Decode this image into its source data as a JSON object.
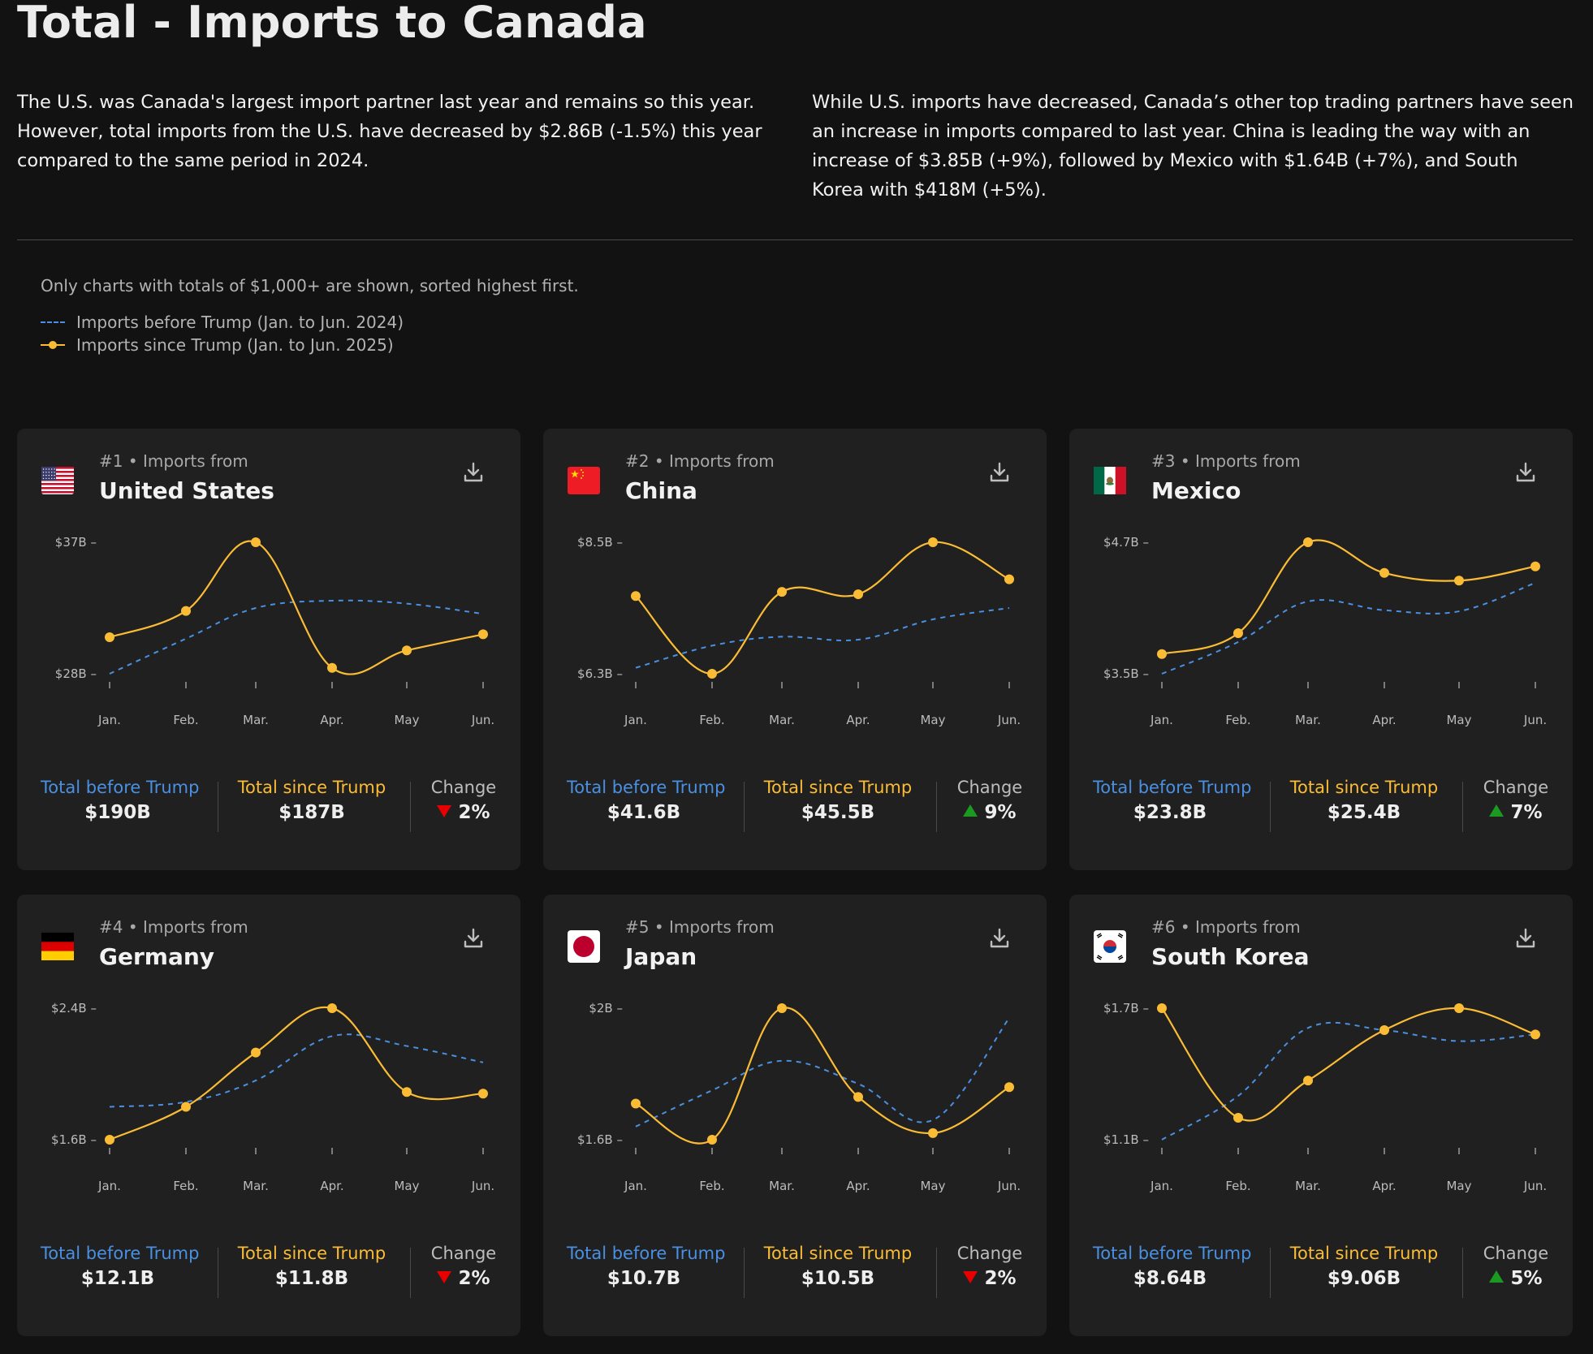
{
  "page": {
    "title": "Total - Imports to Canada",
    "intro_left": "The U.S. was Canada's largest import partner last year and remains so this year. However, total imports from the U.S. have decreased by $2.86B (-1.5%) this year compared to the same period in 2024.",
    "intro_right": "While U.S. imports have decreased, Canada’s other top trading partners have seen an increase in imports compared to last year. China is leading the way with an increase of $3.85B (+9%), followed by Mexico with $1.64B (+7%), and South Korea with $418M (+5%).",
    "note": "Only charts with totals of $1,000+ are shown, sorted highest first.",
    "legend_before": "Imports before Trump (Jan. to Jun. 2024)",
    "legend_since": "Imports since Trump (Jan. to Jun. 2025)",
    "label_before": "Total before Trump",
    "label_since": "Total since Trump",
    "label_change": "Change"
  },
  "colors": {
    "before": "#4a90e2",
    "since": "#fbbc35",
    "up": "#1a9a20",
    "down": "#e80000",
    "background": "#121212",
    "card": "#202020"
  },
  "chart_data": [
    {
      "type": "line",
      "rank": "#1 • Imports from",
      "country": "United States",
      "flag": "us-flag",
      "categories": [
        "Jan.",
        "Feb.",
        "Mar.",
        "Apr.",
        "May",
        "Jun."
      ],
      "yticks": [
        "$37B –",
        "$28B –"
      ],
      "ylim": [
        28,
        37
      ],
      "series": [
        {
          "name": "Imports before Trump (Jan. to Jun. 2024)",
          "style": "dashed",
          "values": [
            28.0,
            30.4,
            32.5,
            33.0,
            32.8,
            32.1
          ]
        },
        {
          "name": "Imports since Trump (Jan. to Jun. 2025)",
          "style": "solid",
          "values": [
            30.5,
            32.3,
            37.0,
            28.4,
            29.6,
            30.7
          ]
        }
      ],
      "total_before": "$190B",
      "total_since": "$187B",
      "change": "2%",
      "direction": "down"
    },
    {
      "type": "line",
      "rank": "#2 • Imports from",
      "country": "China",
      "flag": "cn-flag",
      "categories": [
        "Jan.",
        "Feb.",
        "Mar.",
        "Apr.",
        "May",
        "Jun."
      ],
      "yticks": [
        "$8.5B –",
        "$6.3B –"
      ],
      "ylim": [
        6.3,
        8.5
      ],
      "series": [
        {
          "name": "Imports before Trump (Jan. to Jun. 2024)",
          "style": "dashed",
          "values": [
            6.4,
            6.77,
            6.92,
            6.87,
            7.21,
            7.4
          ]
        },
        {
          "name": "Imports since Trump (Jan. to Jun. 2025)",
          "style": "solid",
          "values": [
            7.6,
            6.3,
            7.67,
            7.63,
            8.5,
            7.88
          ]
        }
      ],
      "total_before": "$41.6B",
      "total_since": "$45.5B",
      "change": "9%",
      "direction": "up"
    },
    {
      "type": "line",
      "rank": "#3 • Imports from",
      "country": "Mexico",
      "flag": "mx-flag",
      "categories": [
        "Jan.",
        "Feb.",
        "Mar.",
        "Apr.",
        "May",
        "Jun."
      ],
      "yticks": [
        "$4.7B –",
        "$3.5B –"
      ],
      "ylim": [
        3.5,
        4.7
      ],
      "series": [
        {
          "name": "Imports before Trump (Jan. to Jun. 2024)",
          "style": "dashed",
          "values": [
            3.5,
            3.79,
            4.16,
            4.08,
            4.07,
            4.33
          ]
        },
        {
          "name": "Imports since Trump (Jan. to Jun. 2025)",
          "style": "solid",
          "values": [
            3.68,
            3.87,
            4.7,
            4.42,
            4.35,
            4.48
          ]
        }
      ],
      "total_before": "$23.8B",
      "total_since": "$25.4B",
      "change": "7%",
      "direction": "up"
    },
    {
      "type": "line",
      "rank": "#4 • Imports from",
      "country": "Germany",
      "flag": "de-flag",
      "categories": [
        "Jan.",
        "Feb.",
        "Mar.",
        "Apr.",
        "May",
        "Jun."
      ],
      "yticks": [
        "$2.4B –",
        "$1.6B –"
      ],
      "ylim": [
        1.6,
        2.4
      ],
      "series": [
        {
          "name": "Imports before Trump (Jan. to Jun. 2024)",
          "style": "dashed",
          "values": [
            1.8,
            1.83,
            1.96,
            2.23,
            2.17,
            2.07
          ]
        },
        {
          "name": "Imports since Trump (Jan. to Jun. 2025)",
          "style": "solid",
          "values": [
            1.6,
            1.8,
            2.13,
            2.4,
            1.89,
            1.88
          ]
        }
      ],
      "total_before": "$12.1B",
      "total_since": "$11.8B",
      "change": "2%",
      "direction": "down"
    },
    {
      "type": "line",
      "rank": "#5 • Imports from",
      "country": "Japan",
      "flag": "jp-flag",
      "categories": [
        "Jan.",
        "Feb.",
        "Mar.",
        "Apr.",
        "May",
        "Jun."
      ],
      "yticks": [
        "$2B –",
        "$1.6B –"
      ],
      "ylim": [
        1.6,
        2.0
      ],
      "series": [
        {
          "name": "Imports before Trump (Jan. to Jun. 2024)",
          "style": "dashed",
          "values": [
            1.64,
            1.75,
            1.84,
            1.77,
            1.66,
            1.97
          ]
        },
        {
          "name": "Imports since Trump (Jan. to Jun. 2025)",
          "style": "solid",
          "values": [
            1.71,
            1.6,
            2.0,
            1.73,
            1.62,
            1.76
          ]
        }
      ],
      "total_before": "$10.7B",
      "total_since": "$10.5B",
      "change": "2%",
      "direction": "down"
    },
    {
      "type": "line",
      "rank": "#6 • Imports from",
      "country": "South Korea",
      "flag": "kr-flag",
      "categories": [
        "Jan.",
        "Feb.",
        "Mar.",
        "Apr.",
        "May",
        "Jun."
      ],
      "yticks": [
        "$1.7B –",
        "$1.1B –"
      ],
      "ylim": [
        1.1,
        1.7
      ],
      "series": [
        {
          "name": "Imports before Trump (Jan. to Jun. 2024)",
          "style": "dashed",
          "values": [
            1.1,
            1.3,
            1.61,
            1.6,
            1.55,
            1.58
          ]
        },
        {
          "name": "Imports since Trump (Jan. to Jun. 2025)",
          "style": "solid",
          "values": [
            1.7,
            1.2,
            1.37,
            1.6,
            1.7,
            1.58
          ]
        }
      ],
      "total_before": "$8.64B",
      "total_since": "$9.06B",
      "change": "5%",
      "direction": "up"
    }
  ]
}
